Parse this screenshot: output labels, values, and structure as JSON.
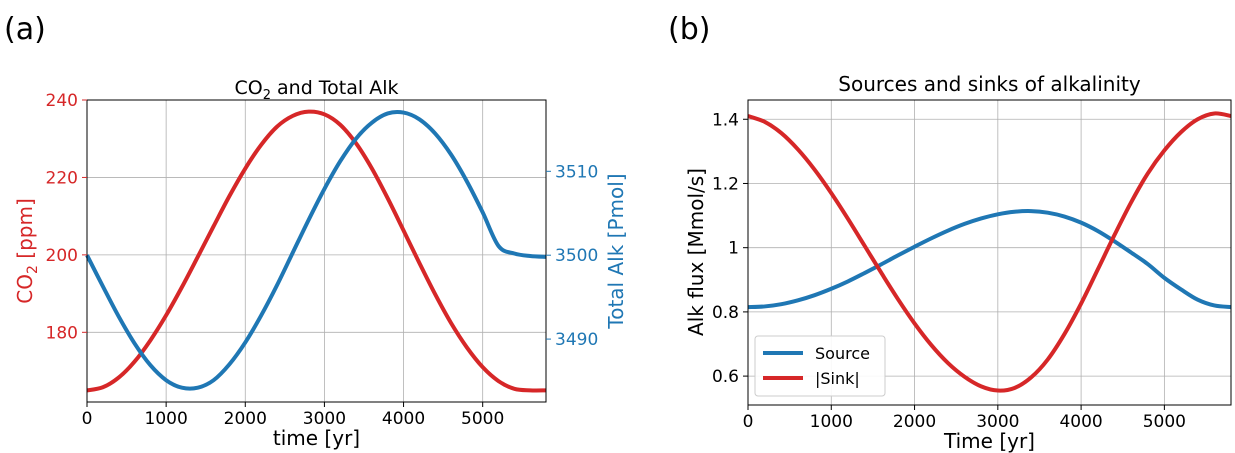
{
  "panels": [
    {
      "panel_label": "(a)",
      "title_main": "CO",
      "title_sub": "2",
      "title_rest": " and Total Alk",
      "xlabel": "time [yr]",
      "ylabel_left_main": "CO",
      "ylabel_left_sub": "2",
      "ylabel_left_rest": " [ppm]",
      "ylabel_right": "Total Alk [Pmol]"
    },
    {
      "panel_label": "(b)",
      "title": "Sources and sinks of alkalinity",
      "xlabel": "Time [yr]",
      "ylabel": "Alk flux [Mmol/s]"
    }
  ],
  "chart_data": [
    {
      "type": "line",
      "title": "CO2 and Total Alk",
      "xlabel": "time [yr]",
      "xlim": [
        0,
        5800
      ],
      "xticks": [
        0,
        1000,
        2000,
        3000,
        4000,
        5000
      ],
      "grid": true,
      "left_axis": {
        "label": "CO2 [ppm]",
        "color": "#d62728",
        "ylim": [
          162,
          240
        ],
        "yticks": [
          180,
          200,
          220,
          240
        ]
      },
      "right_axis": {
        "label": "Total Alk [Pmol]",
        "color": "#1f77b4",
        "ylim": [
          3482.5,
          3518.5
        ],
        "yticks": [
          3490,
          3500,
          3510
        ]
      },
      "series": [
        {
          "axis": "left",
          "color": "#d62728",
          "x": [
            0,
            200,
            400,
            600,
            800,
            1000,
            1200,
            1400,
            1600,
            1800,
            2000,
            2200,
            2400,
            2600,
            2800,
            3000,
            3200,
            3400,
            3600,
            3800,
            4000,
            4200,
            4400,
            4600,
            4800,
            5000,
            5200,
            5400,
            5600,
            5800
          ],
          "values": [
            165.0,
            165.8,
            168.3,
            172.4,
            177.9,
            184.4,
            191.7,
            199.5,
            207.4,
            215.2,
            222.3,
            228.4,
            233.1,
            235.9,
            237.0,
            236.3,
            233.6,
            228.8,
            222.3,
            214.6,
            206.3,
            197.9,
            189.8,
            182.4,
            176.1,
            171.0,
            167.4,
            165.4,
            165.0,
            165.0
          ]
        },
        {
          "axis": "right",
          "color": "#1f77b4",
          "x": [
            0,
            200,
            400,
            600,
            800,
            1000,
            1200,
            1400,
            1600,
            1800,
            2000,
            2200,
            2400,
            2600,
            2800,
            3000,
            3200,
            3400,
            3600,
            3800,
            4000,
            4200,
            4400,
            4600,
            4800,
            5000,
            5200,
            5400,
            5600,
            5800
          ],
          "values": [
            3500.0,
            3496.3,
            3492.7,
            3489.5,
            3486.9,
            3485.1,
            3484.2,
            3484.2,
            3485.1,
            3487.0,
            3489.6,
            3492.8,
            3496.4,
            3500.3,
            3504.2,
            3507.9,
            3511.2,
            3513.9,
            3515.8,
            3516.9,
            3517.0,
            3516.2,
            3514.5,
            3512.0,
            3508.8,
            3505.1,
            3501.1,
            3500.2,
            3499.9,
            3499.8
          ]
        }
      ]
    },
    {
      "type": "line",
      "title": "Sources and sinks of alkalinity",
      "xlabel": "Time [yr]",
      "ylabel": "Alk flux [Mmol/s]",
      "xlim": [
        0,
        5800
      ],
      "ylim": [
        0.51,
        1.46
      ],
      "xticks": [
        0,
        1000,
        2000,
        3000,
        4000,
        5000
      ],
      "yticks": [
        0.6,
        0.8,
        1.0,
        1.2,
        1.4
      ],
      "grid": true,
      "legend": "lower-left",
      "series": [
        {
          "name": "Source",
          "color": "#1f77b4",
          "x": [
            0,
            200,
            400,
            600,
            800,
            1000,
            1200,
            1400,
            1600,
            1800,
            2000,
            2200,
            2400,
            2600,
            2800,
            3000,
            3200,
            3400,
            3600,
            3800,
            4000,
            4200,
            4400,
            4600,
            4800,
            5000,
            5200,
            5400,
            5600,
            5800
          ],
          "values": [
            0.815,
            0.817,
            0.824,
            0.836,
            0.852,
            0.872,
            0.895,
            0.921,
            0.948,
            0.976,
            1.003,
            1.029,
            1.053,
            1.074,
            1.091,
            1.104,
            1.112,
            1.114,
            1.109,
            1.097,
            1.078,
            1.052,
            1.02,
            0.985,
            0.949,
            0.906,
            0.87,
            0.838,
            0.82,
            0.815
          ]
        },
        {
          "name": "|Sink|",
          "color": "#d62728",
          "x": [
            0,
            200,
            400,
            600,
            800,
            1000,
            1200,
            1400,
            1600,
            1800,
            2000,
            2200,
            2400,
            2600,
            2800,
            3000,
            3200,
            3400,
            3600,
            3800,
            4000,
            4200,
            4400,
            4600,
            4800,
            5000,
            5200,
            5400,
            5600,
            5800
          ],
          "values": [
            1.41,
            1.392,
            1.357,
            1.306,
            1.243,
            1.17,
            1.09,
            1.006,
            0.922,
            0.84,
            0.764,
            0.697,
            0.641,
            0.598,
            0.568,
            0.555,
            0.563,
            0.596,
            0.652,
            0.731,
            0.826,
            0.932,
            1.039,
            1.141,
            1.231,
            1.303,
            1.36,
            1.4,
            1.418,
            1.41
          ]
        }
      ]
    }
  ]
}
